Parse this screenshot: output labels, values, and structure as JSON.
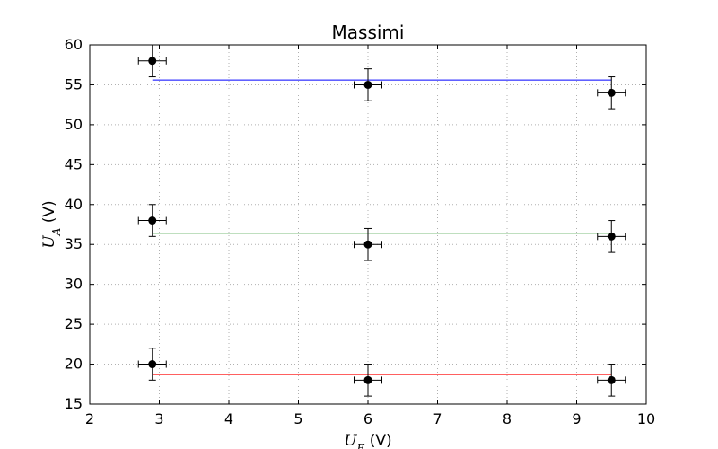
{
  "chart_data": {
    "type": "scatter",
    "title": "Massimi",
    "xlabel": {
      "symbol": "U",
      "subscript": "E",
      "unit": " (V)"
    },
    "ylabel": {
      "symbol": "U",
      "subscript": "A",
      "unit": " (V)"
    },
    "xlim": [
      2,
      10
    ],
    "ylim": [
      15,
      60
    ],
    "xticks": [
      2,
      3,
      4,
      5,
      6,
      7,
      8,
      9,
      10
    ],
    "yticks": [
      15,
      20,
      25,
      30,
      35,
      40,
      45,
      50,
      55,
      60
    ],
    "grid": true,
    "series": [
      {
        "color": "#0000ff",
        "points": [
          {
            "x": 2.9,
            "y": 58,
            "xerr": 0.2,
            "yerr": 2
          },
          {
            "x": 6.0,
            "y": 55,
            "xerr": 0.2,
            "yerr": 2
          },
          {
            "x": 9.5,
            "y": 54,
            "xerr": 0.2,
            "yerr": 2
          }
        ],
        "fit": {
          "x": [
            2.9,
            9.5
          ],
          "y": [
            55.6,
            55.6
          ]
        }
      },
      {
        "color": "#008000",
        "points": [
          {
            "x": 2.9,
            "y": 38,
            "xerr": 0.2,
            "yerr": 2
          },
          {
            "x": 6.0,
            "y": 35,
            "xerr": 0.2,
            "yerr": 2
          },
          {
            "x": 9.5,
            "y": 36,
            "xerr": 0.2,
            "yerr": 2
          }
        ],
        "fit": {
          "x": [
            2.9,
            9.5
          ],
          "y": [
            36.4,
            36.4
          ]
        }
      },
      {
        "color": "#ff0000",
        "points": [
          {
            "x": 2.9,
            "y": 20,
            "xerr": 0.2,
            "yerr": 2
          },
          {
            "x": 6.0,
            "y": 18,
            "xerr": 0.2,
            "yerr": 2
          },
          {
            "x": 9.5,
            "y": 18,
            "xerr": 0.2,
            "yerr": 2
          }
        ],
        "fit": {
          "x": [
            2.9,
            9.5
          ],
          "y": [
            18.7,
            18.7
          ]
        }
      }
    ]
  }
}
